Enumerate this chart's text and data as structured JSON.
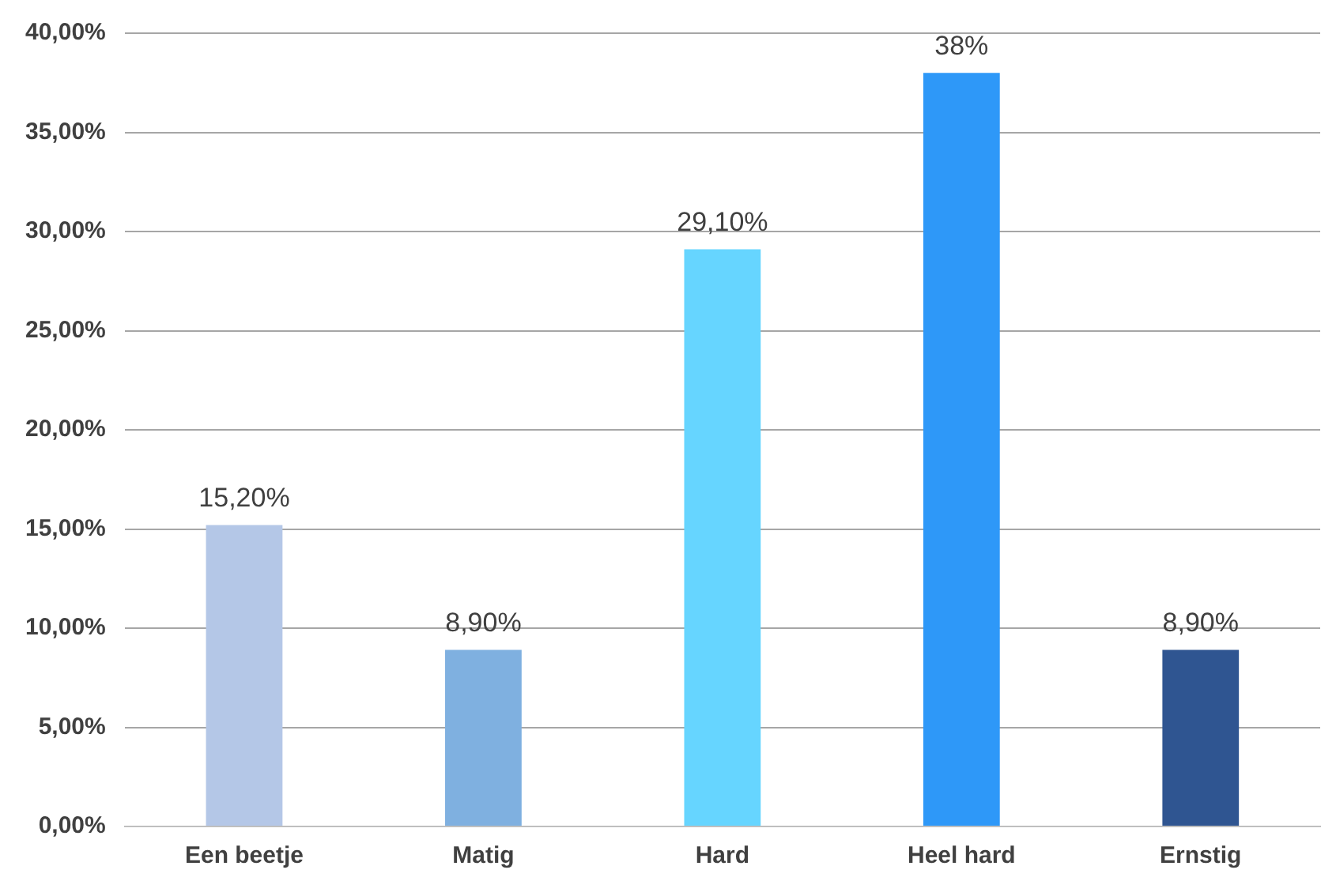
{
  "chart_data": {
    "type": "bar",
    "categories": [
      "Een beetje",
      "Matig",
      "Hard",
      "Heel hard",
      "Ernstig"
    ],
    "values": [
      15.2,
      8.9,
      29.1,
      38,
      8.9
    ],
    "colors": [
      "#b4c7e7",
      "#7fb0e0",
      "#66d5ff",
      "#2e98f8",
      "#2f5591"
    ],
    "value_labels": [
      "15,20%",
      "8,90%",
      "29,10%",
      "38%",
      "8,90%"
    ],
    "ylim": [
      0,
      40
    ],
    "yticks": [
      {
        "value": 0,
        "label": "0,00%"
      },
      {
        "value": 5,
        "label": "5,00%"
      },
      {
        "value": 10,
        "label": "10,00%"
      },
      {
        "value": 15,
        "label": "15,00%"
      },
      {
        "value": 20,
        "label": "20,00%"
      },
      {
        "value": 25,
        "label": "25,00%"
      },
      {
        "value": 30,
        "label": "30,00%"
      },
      {
        "value": 35,
        "label": "35,00%"
      },
      {
        "value": 40,
        "label": "40,00%"
      }
    ],
    "grid": "y",
    "legend": false
  }
}
